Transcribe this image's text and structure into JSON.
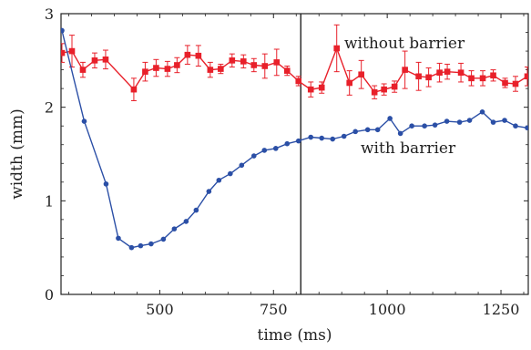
{
  "chart_data": {
    "type": "line",
    "xlabel": "time (ms)",
    "ylabel": "width (mm)",
    "xlim": [
      283,
      1310
    ],
    "ylim": [
      0,
      3
    ],
    "xticks": [
      "500",
      "750",
      "1000",
      "1250"
    ],
    "xtick_values": [
      500,
      750,
      1000,
      1250
    ],
    "yticks": [
      "0",
      "1",
      "2",
      "3"
    ],
    "ytick_values": [
      0,
      1,
      2,
      3
    ],
    "reference_line_x": 810,
    "legend": "none",
    "grid": false,
    "series": [
      {
        "name": "without barrier",
        "color": "#e8202a",
        "marker": "square",
        "x": [
          285,
          307,
          331,
          357,
          381,
          443,
          468,
          492,
          517,
          538,
          561,
          585,
          611,
          634,
          659,
          684,
          707,
          731,
          757,
          780,
          805,
          832,
          856,
          889,
          917,
          943,
          972,
          993,
          1016,
          1039,
          1069,
          1091,
          1115,
          1132,
          1162,
          1185,
          1210,
          1233,
          1259,
          1282,
          1308
        ],
        "y": [
          2.58,
          2.6,
          2.4,
          2.5,
          2.51,
          2.19,
          2.38,
          2.42,
          2.41,
          2.45,
          2.56,
          2.55,
          2.4,
          2.41,
          2.5,
          2.49,
          2.45,
          2.44,
          2.48,
          2.39,
          2.28,
          2.19,
          2.21,
          2.63,
          2.26,
          2.35,
          2.16,
          2.19,
          2.22,
          2.4,
          2.33,
          2.32,
          2.37,
          2.38,
          2.37,
          2.31,
          2.31,
          2.34,
          2.26,
          2.25,
          2.33
        ],
        "err": [
          0.1,
          0.17,
          0.08,
          0.08,
          0.1,
          0.12,
          0.1,
          0.09,
          0.08,
          0.08,
          0.1,
          0.11,
          0.08,
          0.05,
          0.07,
          0.07,
          0.07,
          0.13,
          0.14,
          0.05,
          0.05,
          0.08,
          0.06,
          0.25,
          0.13,
          0.15,
          0.07,
          0.06,
          0.06,
          0.2,
          0.15,
          0.1,
          0.1,
          0.08,
          0.1,
          0.08,
          0.08,
          0.06,
          0.05,
          0.08,
          0.1
        ]
      },
      {
        "name": "with barrier",
        "color": "#2b4fa6",
        "marker": "circle",
        "x": [
          285,
          334,
          382,
          409,
          438,
          458,
          481,
          508,
          532,
          558,
          580,
          608,
          630,
          655,
          680,
          707,
          730,
          755,
          780,
          805,
          832,
          856,
          880,
          905,
          930,
          957,
          979,
          1006,
          1029,
          1054,
          1082,
          1105,
          1131,
          1159,
          1181,
          1209,
          1233,
          1258,
          1282,
          1308
        ],
        "y": [
          2.82,
          1.85,
          1.18,
          0.6,
          0.5,
          0.52,
          0.54,
          0.59,
          0.7,
          0.78,
          0.9,
          1.1,
          1.22,
          1.29,
          1.38,
          1.48,
          1.54,
          1.56,
          1.61,
          1.64,
          1.68,
          1.67,
          1.66,
          1.69,
          1.74,
          1.76,
          1.76,
          1.88,
          1.72,
          1.8,
          1.8,
          1.81,
          1.85,
          1.84,
          1.86,
          1.95,
          1.84,
          1.86,
          1.8,
          1.78
        ]
      }
    ],
    "annotations": [
      "without barrier",
      "with barrier"
    ]
  }
}
